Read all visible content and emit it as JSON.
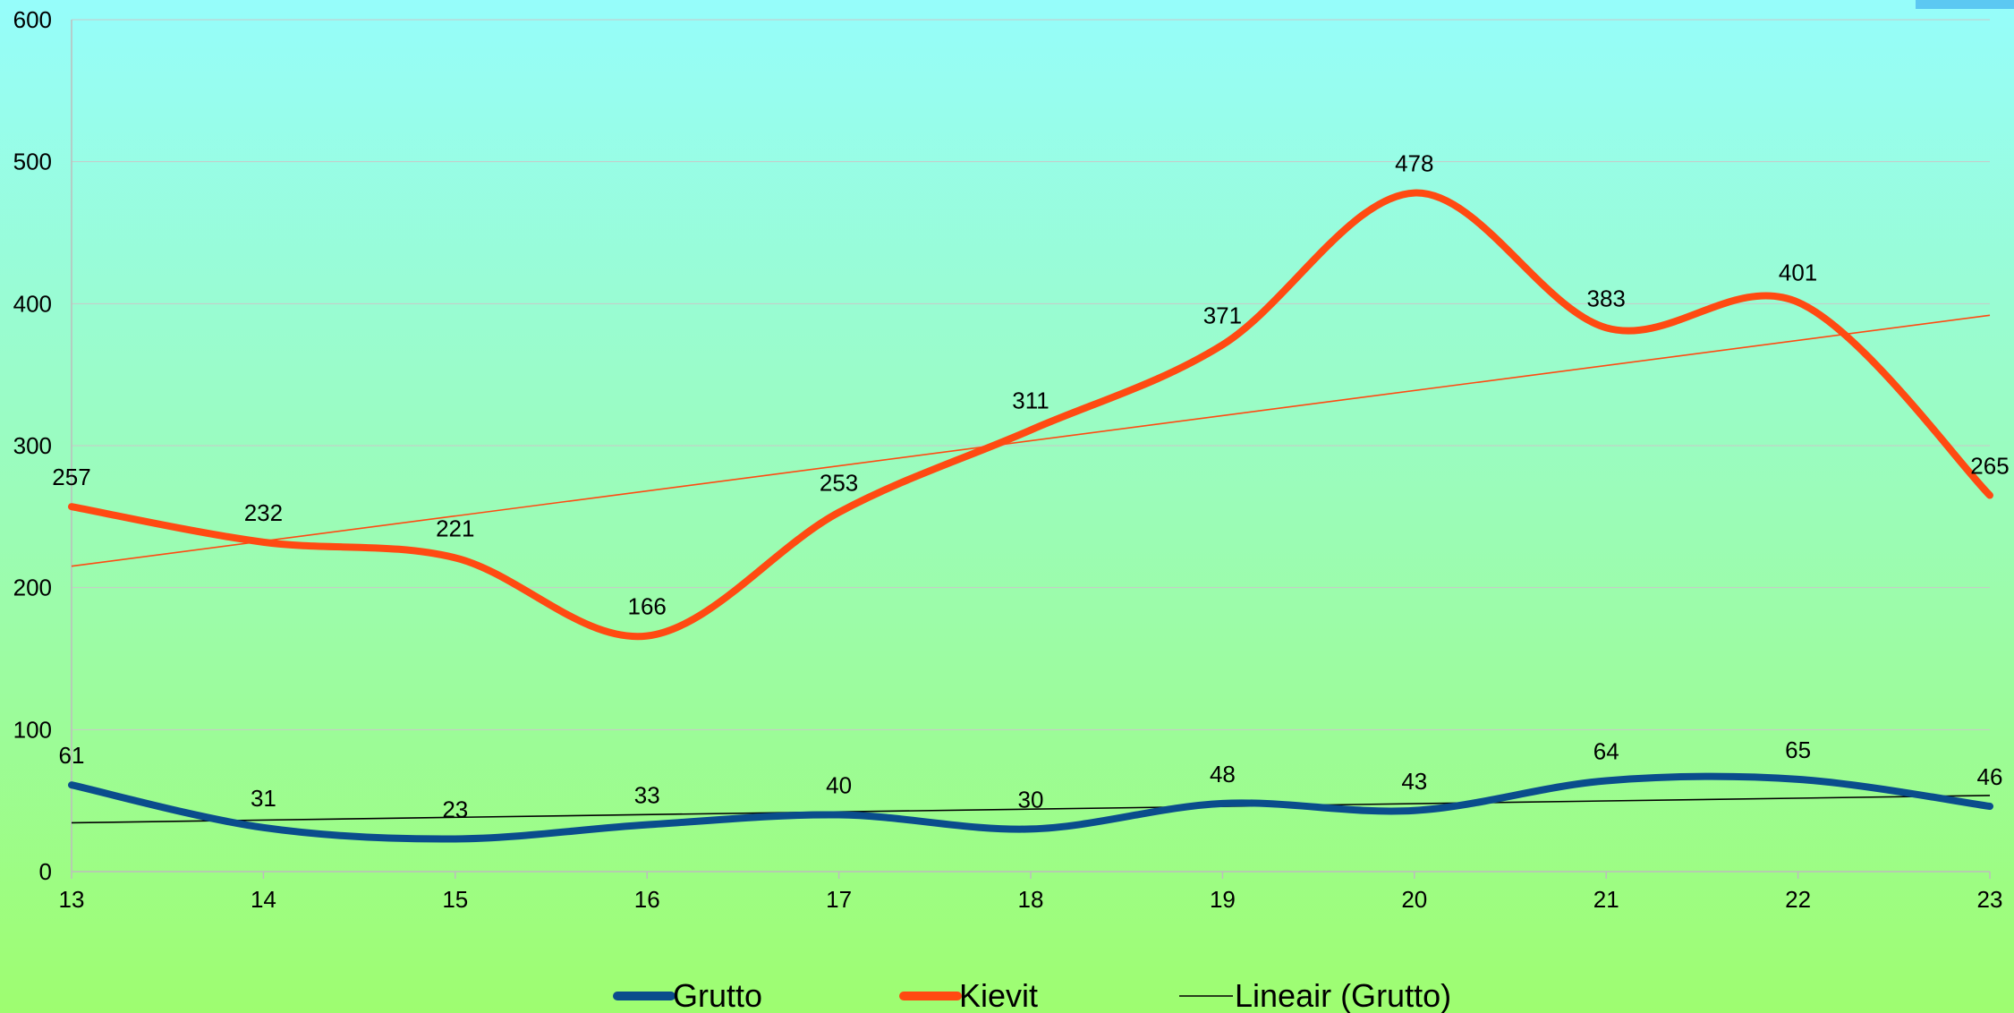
{
  "chart_data": {
    "type": "line",
    "categories": [
      "13",
      "14",
      "15",
      "16",
      "17",
      "18",
      "19",
      "20",
      "21",
      "22",
      "23"
    ],
    "series": [
      {
        "name": "Grutto",
        "color": "#0a4d8c",
        "values": [
          61,
          31,
          23,
          33,
          40,
          30,
          48,
          43,
          64,
          65,
          46
        ]
      },
      {
        "name": "Kievit",
        "color": "#ff4a12",
        "values": [
          257,
          232,
          221,
          166,
          253,
          311,
          371,
          478,
          383,
          401,
          265
        ]
      }
    ],
    "trendlines": [
      {
        "of": "Grutto",
        "name": "Lineair (Grutto)",
        "color": "#000000"
      },
      {
        "of": "Kievit",
        "name": "",
        "color": "#ff4a12"
      }
    ],
    "ylim": [
      0,
      600
    ],
    "yticks": [
      "0",
      "100",
      "200",
      "300",
      "400",
      "500",
      "600"
    ],
    "grid": true,
    "legend_position": "bottom",
    "legend": [
      {
        "label": "Grutto",
        "color": "#0a4d8c",
        "style": "thick"
      },
      {
        "label": "Kievit",
        "color": "#ff4a12",
        "style": "thick"
      },
      {
        "label": "Lineair (Grutto)",
        "color": "#000000",
        "style": "thin"
      }
    ]
  }
}
